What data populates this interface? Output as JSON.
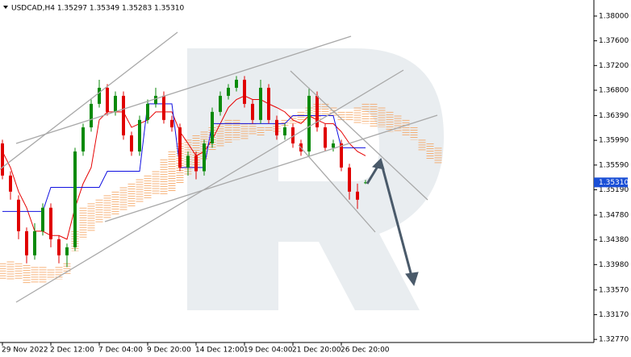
{
  "chart_data": {
    "type": "candlestick",
    "title": "USDCAD,H4  1.35297 1.35349 1.35283 1.35310",
    "categories": [
      "29 Nov 2022",
      null,
      null,
      null,
      null,
      null,
      "2 Dec 12:00",
      null,
      null,
      null,
      null,
      null,
      "7 Dec 04:00",
      null,
      null,
      null,
      null,
      null,
      "9 Dec 20:00",
      null,
      null,
      null,
      null,
      null,
      "14 Dec 12:00",
      null,
      null,
      null,
      null,
      null,
      "19 Dec 04:00",
      null,
      null,
      null,
      null,
      null,
      "21 Dec 20:00",
      null,
      null,
      null,
      null,
      null,
      "26 Dec 20:00",
      null,
      null,
      null,
      null,
      null,
      null,
      null,
      null,
      null,
      null,
      null,
      null
    ],
    "open": [
      1.3594,
      1.3542,
      1.3503,
      1.3452,
      1.3413,
      1.3452,
      1.349,
      1.3439,
      1.3413,
      1.3426,
      1.3581,
      1.362,
      1.3658,
      1.3684,
      1.3645,
      1.3671,
      1.3607,
      1.3581,
      1.3632,
      1.3658,
      1.3671,
      1.3632,
      1.362,
      1.3555,
      1.3574,
      1.3549,
      1.3594,
      1.3645,
      1.3671,
      1.3684,
      1.3697,
      1.3658,
      1.3632,
      1.3684,
      1.3632,
      1.3607,
      1.362,
      1.3594,
      1.3581,
      1.3671,
      1.362,
      1.3587,
      1.3594,
      1.3555,
      1.3516,
      1.35297,
      null,
      null,
      null,
      null,
      null,
      null,
      null,
      null,
      null
    ],
    "high": [
      1.36,
      1.3549,
      1.351,
      1.3458,
      1.3465,
      1.3497,
      1.3497,
      1.3445,
      1.3432,
      1.3587,
      1.3626,
      1.3665,
      1.3697,
      1.369,
      1.3678,
      1.3678,
      1.3613,
      1.3639,
      1.3665,
      1.3684,
      1.3678,
      1.3639,
      1.3626,
      1.3581,
      1.3581,
      1.36,
      1.3652,
      1.3678,
      1.369,
      1.3703,
      1.3703,
      1.3665,
      1.3697,
      1.369,
      1.3639,
      1.3626,
      1.3626,
      1.36,
      1.3684,
      1.3678,
      1.3626,
      1.36,
      1.36,
      1.3561,
      1.3529,
      1.35349,
      null,
      null,
      null,
      null,
      null,
      null,
      null,
      null,
      null
    ],
    "low": [
      1.3536,
      1.3503,
      1.3439,
      1.34,
      1.3406,
      1.3445,
      1.3426,
      1.34,
      1.3394,
      1.342,
      1.3574,
      1.3613,
      1.3652,
      1.3639,
      1.3639,
      1.36,
      1.3574,
      1.3574,
      1.3626,
      1.3652,
      1.3626,
      1.3613,
      1.3549,
      1.3542,
      1.3536,
      1.3542,
      1.3587,
      1.3639,
      1.3665,
      1.3678,
      1.3652,
      1.3626,
      1.3626,
      1.3626,
      1.36,
      1.36,
      1.3587,
      1.3574,
      1.3574,
      1.3613,
      1.3581,
      1.3581,
      1.3549,
      1.3503,
      1.3488,
      1.35283,
      null,
      null,
      null,
      null,
      null,
      null,
      null,
      null,
      null
    ],
    "close": [
      1.3542,
      1.3516,
      1.3452,
      1.3413,
      1.3452,
      1.349,
      1.3439,
      1.3413,
      1.3426,
      1.3581,
      1.362,
      1.3658,
      1.3684,
      1.3645,
      1.3671,
      1.3607,
      1.3581,
      1.3632,
      1.3658,
      1.3671,
      1.3632,
      1.362,
      1.3555,
      1.3574,
      1.3549,
      1.3594,
      1.3645,
      1.3671,
      1.3684,
      1.3697,
      1.3658,
      1.3632,
      1.3684,
      1.3632,
      1.3607,
      1.362,
      1.3594,
      1.3581,
      1.3671,
      1.362,
      1.3587,
      1.3594,
      1.3555,
      1.3516,
      1.3503,
      1.3531,
      null,
      null,
      null,
      null,
      null,
      null,
      null,
      null,
      null
    ],
    "up_color": "#0a8a0a",
    "down_color": "#e00000",
    "lines": [
      {
        "color": "#e60000",
        "values": [
          1.3581,
          1.3555,
          1.3516,
          1.349,
          1.3452,
          1.3452,
          1.3445,
          1.3445,
          1.3439,
          1.349,
          1.3529,
          1.3555,
          1.3632,
          1.3645,
          1.3645,
          1.3645,
          1.362,
          1.3626,
          1.3632,
          1.3645,
          1.3645,
          1.3645,
          1.3613,
          1.3594,
          1.3574,
          1.3581,
          1.36,
          1.3626,
          1.3652,
          1.3665,
          1.3671,
          1.3665,
          1.3665,
          1.3658,
          1.3652,
          1.3645,
          1.3632,
          1.3626,
          1.3639,
          1.3632,
          1.3626,
          1.3626,
          1.3613,
          1.3594,
          1.3581,
          1.3574,
          null,
          null,
          null,
          null,
          null,
          null,
          null,
          null,
          null
        ]
      },
      {
        "color": "#1010e0",
        "values": [
          1.3484,
          1.3484,
          1.3484,
          1.3484,
          1.3484,
          1.3484,
          1.3523,
          1.3523,
          1.3523,
          1.3523,
          1.3523,
          1.3523,
          1.3523,
          1.3549,
          1.3549,
          1.3549,
          1.3549,
          1.3549,
          1.3658,
          1.3658,
          1.3658,
          1.3658,
          1.3555,
          1.3555,
          1.3555,
          1.3555,
          1.3626,
          1.3626,
          1.3626,
          1.3626,
          1.3626,
          1.3626,
          1.3626,
          1.3626,
          1.3626,
          1.3626,
          1.3639,
          1.3639,
          1.3639,
          1.3639,
          1.3639,
          1.3639,
          1.3587,
          1.3587,
          1.3587,
          1.3587,
          null,
          null,
          null,
          null,
          null,
          null,
          null,
          null,
          null
        ]
      }
    ],
    "cloud": {
      "color": "#f5a05a",
      "color_below": "#a385d6",
      "senkou_a": [
        1.34,
        1.3403,
        1.34,
        1.3397,
        1.3394,
        1.3394,
        1.339,
        1.3394,
        1.34,
        1.3452,
        1.349,
        1.3497,
        1.3503,
        1.351,
        1.3516,
        1.3523,
        1.3529,
        1.3536,
        1.3542,
        1.3549,
        1.3568,
        1.3581,
        1.3594,
        1.36,
        1.3607,
        1.3613,
        1.362,
        1.3626,
        1.3632,
        1.3632,
        1.3626,
        1.3626,
        1.362,
        1.362,
        1.3626,
        1.3632,
        1.3639,
        1.3645,
        1.3652,
        1.3658,
        1.3658,
        1.3652,
        1.3645,
        1.3645,
        1.3652,
        1.3658,
        1.3658,
        1.3652,
        1.3645,
        1.3639,
        1.3632,
        1.362,
        1.36,
        1.3594,
        1.3587
      ],
      "senkou_b": [
        1.3374,
        1.3374,
        1.3374,
        1.3368,
        1.3368,
        1.3368,
        1.3374,
        1.3374,
        1.3381,
        1.342,
        1.3439,
        1.3452,
        1.3465,
        1.3471,
        1.3478,
        1.3484,
        1.349,
        1.3497,
        1.3503,
        1.351,
        1.351,
        1.3516,
        1.3529,
        1.3542,
        1.3555,
        1.3568,
        1.3581,
        1.3587,
        1.3594,
        1.36,
        1.36,
        1.3607,
        1.3607,
        1.3613,
        1.3613,
        1.362,
        1.3626,
        1.3626,
        1.3632,
        1.3632,
        1.3639,
        1.3639,
        1.3632,
        1.3632,
        1.3626,
        1.3626,
        1.362,
        1.362,
        1.3613,
        1.3613,
        1.3607,
        1.36,
        1.3581,
        1.3568,
        1.3561
      ]
    },
    "ylim": [
      1.3272,
      1.3826
    ],
    "yticks": [
      {
        "value": 1.38,
        "label": "1.38000"
      },
      {
        "value": 1.376,
        "label": "1.37600"
      },
      {
        "value": 1.372,
        "label": "1.37200"
      },
      {
        "value": 1.368,
        "label": "1.36800"
      },
      {
        "value": 1.3639,
        "label": "1.36390"
      },
      {
        "value": 1.3599,
        "label": "1.35990"
      },
      {
        "value": 1.3559,
        "label": "1.35590"
      },
      {
        "value": 1.3519,
        "label": "1.35190"
      },
      {
        "value": 1.3478,
        "label": "1.34780"
      },
      {
        "value": 1.3438,
        "label": "1.34380"
      },
      {
        "value": 1.3398,
        "label": "1.33980"
      },
      {
        "value": 1.3357,
        "label": "1.33570"
      },
      {
        "value": 1.3317,
        "label": "1.33170"
      },
      {
        "value": 1.3277,
        "label": "1.32770"
      }
    ],
    "current_price": {
      "value": 1.3531,
      "label": "1.35310",
      "color": "#1a4fd6"
    }
  }
}
